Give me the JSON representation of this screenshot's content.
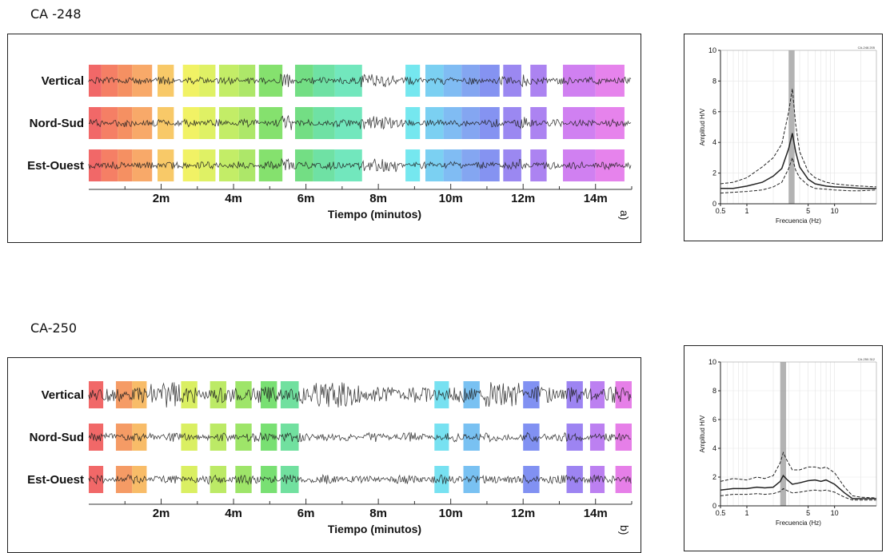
{
  "chart_data": [
    {
      "type": "waveform",
      "title": "CA -248",
      "panel_label": "a)",
      "xlabel": "Tiempo (minutos)",
      "xlim": [
        0,
        15
      ],
      "xticks": [
        2,
        4,
        6,
        8,
        10,
        12,
        14
      ],
      "xtick_labels": [
        "2m",
        "4m",
        "6m",
        "8m",
        "10m",
        "12m",
        "14m"
      ],
      "channels": [
        "Vertical",
        "Nord-Sud",
        "Est-Ouest"
      ],
      "amplitude_style": "low",
      "windows": [
        {
          "start": 0.0,
          "end": 0.35,
          "color": "#ef4d4d"
        },
        {
          "start": 0.35,
          "end": 0.8,
          "color": "#f3684a"
        },
        {
          "start": 0.8,
          "end": 1.2,
          "color": "#f37d46"
        },
        {
          "start": 1.2,
          "end": 1.75,
          "color": "#f79a4f"
        },
        {
          "start": 1.9,
          "end": 2.35,
          "color": "#f7c04e"
        },
        {
          "start": 2.6,
          "end": 3.05,
          "color": "#eef04a"
        },
        {
          "start": 3.05,
          "end": 3.5,
          "color": "#d9ef4a"
        },
        {
          "start": 3.6,
          "end": 4.15,
          "color": "#b8ea4c"
        },
        {
          "start": 4.15,
          "end": 4.6,
          "color": "#9fe34f"
        },
        {
          "start": 4.7,
          "end": 5.35,
          "color": "#70dc55"
        },
        {
          "start": 5.7,
          "end": 6.2,
          "color": "#5bd86f"
        },
        {
          "start": 6.2,
          "end": 6.8,
          "color": "#56dc94"
        },
        {
          "start": 6.8,
          "end": 7.55,
          "color": "#59e3b2"
        },
        {
          "start": 8.75,
          "end": 9.15,
          "color": "#5de3ec"
        },
        {
          "start": 9.3,
          "end": 9.8,
          "color": "#64c8f0"
        },
        {
          "start": 9.8,
          "end": 10.3,
          "color": "#6ab0f1"
        },
        {
          "start": 10.3,
          "end": 10.8,
          "color": "#6f97ef"
        },
        {
          "start": 10.8,
          "end": 11.35,
          "color": "#7080ee"
        },
        {
          "start": 11.45,
          "end": 11.95,
          "color": "#8a73ee"
        },
        {
          "start": 12.2,
          "end": 12.65,
          "color": "#9d6def"
        },
        {
          "start": 13.1,
          "end": 14.0,
          "color": "#c86aef"
        },
        {
          "start": 14.0,
          "end": 14.8,
          "color": "#e26de9"
        }
      ]
    },
    {
      "type": "line",
      "title": "",
      "plot_id": "CA-248.205",
      "xlabel": "Frecuencia (Hz)",
      "ylabel": "Amplitud H/V",
      "xscale": "log",
      "xlim": [
        0.5,
        30
      ],
      "ylim": [
        0,
        10
      ],
      "yticks": [
        0,
        2,
        4,
        6,
        8,
        10
      ],
      "xticks": [
        0.5,
        1,
        5,
        10
      ],
      "xtick_labels": [
        "0.5",
        "1",
        "5",
        "10"
      ],
      "peak_band": [
        3.0,
        3.5
      ],
      "series": [
        {
          "style": "solid",
          "x": [
            0.5,
            0.7,
            1.0,
            1.5,
            2.0,
            2.5,
            3.0,
            3.3,
            3.6,
            4.0,
            5.0,
            6.0,
            8.0,
            10.0,
            15.0,
            20.0,
            30.0
          ],
          "y": [
            1.0,
            1.0,
            1.15,
            1.4,
            1.8,
            2.3,
            3.6,
            4.6,
            3.4,
            2.4,
            1.6,
            1.3,
            1.15,
            1.1,
            1.05,
            1.0,
            1.0
          ]
        },
        {
          "style": "dashed",
          "x": [
            0.5,
            0.7,
            1.0,
            1.5,
            2.0,
            2.5,
            3.0,
            3.3,
            3.6,
            4.0,
            5.0,
            6.0,
            8.0,
            10.0,
            15.0,
            20.0,
            30.0
          ],
          "y": [
            1.3,
            1.4,
            1.7,
            2.4,
            3.0,
            3.9,
            6.0,
            7.5,
            5.2,
            3.4,
            2.1,
            1.7,
            1.4,
            1.3,
            1.2,
            1.15,
            1.1
          ]
        },
        {
          "style": "dashed",
          "x": [
            0.5,
            0.7,
            1.0,
            1.5,
            2.0,
            2.5,
            3.0,
            3.3,
            3.6,
            4.0,
            5.0,
            6.0,
            8.0,
            10.0,
            15.0,
            20.0,
            30.0
          ],
          "y": [
            0.7,
            0.75,
            0.8,
            0.9,
            1.1,
            1.4,
            2.3,
            3.0,
            2.2,
            1.7,
            1.2,
            1.0,
            0.95,
            0.9,
            0.85,
            0.85,
            0.9
          ]
        }
      ]
    },
    {
      "type": "waveform",
      "title": "CA-250",
      "panel_label": "b)",
      "xlabel": "Tiempo (minutos)",
      "xlim": [
        0,
        15
      ],
      "xticks": [
        2,
        4,
        6,
        8,
        10,
        12,
        14
      ],
      "xtick_labels": [
        "2m",
        "4m",
        "6m",
        "8m",
        "10m",
        "12m",
        "14m"
      ],
      "channels": [
        "Vertical",
        "Nord-Sud",
        "Est-Ouest"
      ],
      "amplitude_style": "high",
      "windows": [
        {
          "start": 0.0,
          "end": 0.4,
          "color": "#ef4d4d"
        },
        {
          "start": 0.75,
          "end": 1.2,
          "color": "#f38a4a"
        },
        {
          "start": 1.2,
          "end": 1.6,
          "color": "#f7b04d"
        },
        {
          "start": 2.55,
          "end": 3.0,
          "color": "#d4ec47"
        },
        {
          "start": 3.35,
          "end": 3.8,
          "color": "#b0e64b"
        },
        {
          "start": 4.05,
          "end": 4.5,
          "color": "#8de04f"
        },
        {
          "start": 4.75,
          "end": 5.2,
          "color": "#62da5a"
        },
        {
          "start": 5.3,
          "end": 5.8,
          "color": "#58da8e"
        },
        {
          "start": 9.55,
          "end": 9.95,
          "color": "#5fdcee"
        },
        {
          "start": 10.35,
          "end": 10.8,
          "color": "#62b6f0"
        },
        {
          "start": 12.0,
          "end": 12.45,
          "color": "#6b7ef0"
        },
        {
          "start": 13.2,
          "end": 13.65,
          "color": "#8c6ff0"
        },
        {
          "start": 13.85,
          "end": 14.25,
          "color": "#b06aee"
        },
        {
          "start": 14.55,
          "end": 15.0,
          "color": "#e268e4"
        }
      ]
    },
    {
      "type": "line",
      "title": "",
      "plot_id": "CA-250.312",
      "xlabel": "Frecuencia (Hz)",
      "ylabel": "Amplitud H/V",
      "xscale": "log",
      "xlim": [
        0.5,
        30
      ],
      "ylim": [
        0,
        10
      ],
      "yticks": [
        0,
        2,
        4,
        6,
        8,
        10
      ],
      "xticks": [
        0.5,
        1,
        5,
        10
      ],
      "xtick_labels": [
        "0.5",
        "1",
        "5",
        "10"
      ],
      "peak_band": [
        2.4,
        2.8
      ],
      "series": [
        {
          "style": "solid",
          "x": [
            0.5,
            0.7,
            1.0,
            1.3,
            1.6,
            2.0,
            2.4,
            2.6,
            2.9,
            3.3,
            4.0,
            5.0,
            6.0,
            7.0,
            8.0,
            10.0,
            13.0,
            16.0,
            20.0,
            30.0
          ],
          "y": [
            1.1,
            1.2,
            1.2,
            1.3,
            1.25,
            1.3,
            1.7,
            2.1,
            1.8,
            1.5,
            1.6,
            1.75,
            1.8,
            1.7,
            1.8,
            1.5,
            0.9,
            0.5,
            0.5,
            0.5
          ]
        },
        {
          "style": "dashed",
          "x": [
            0.5,
            0.7,
            1.0,
            1.3,
            1.6,
            2.0,
            2.4,
            2.6,
            2.9,
            3.3,
            4.0,
            5.0,
            6.0,
            7.0,
            8.0,
            10.0,
            13.0,
            16.0,
            20.0,
            30.0
          ],
          "y": [
            1.7,
            1.9,
            1.8,
            2.0,
            1.9,
            2.1,
            3.0,
            3.7,
            3.1,
            2.5,
            2.5,
            2.7,
            2.7,
            2.6,
            2.7,
            2.3,
            1.3,
            0.7,
            0.6,
            0.55
          ]
        },
        {
          "style": "dashed",
          "x": [
            0.5,
            0.7,
            1.0,
            1.3,
            1.6,
            2.0,
            2.4,
            2.6,
            2.9,
            3.3,
            4.0,
            5.0,
            6.0,
            7.0,
            8.0,
            10.0,
            13.0,
            16.0,
            20.0,
            30.0
          ],
          "y": [
            0.7,
            0.8,
            0.8,
            0.85,
            0.8,
            0.85,
            1.0,
            1.2,
            1.05,
            0.9,
            0.95,
            1.05,
            1.1,
            1.05,
            1.1,
            0.95,
            0.6,
            0.4,
            0.4,
            0.4
          ]
        }
      ]
    }
  ]
}
